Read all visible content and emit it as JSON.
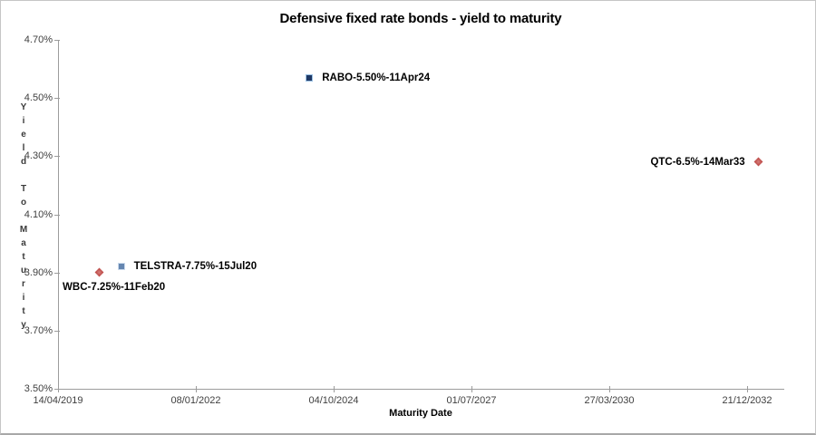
{
  "chart": {
    "title": "Defensive fixed rate bonds - yield to maturity"
  },
  "chart_data": {
    "type": "scatter",
    "title": "Defensive fixed rate bonds - yield to maturity",
    "xlabel": "Maturity Date",
    "ylabel": "Yield To Maturity",
    "x_ticks": [
      "14/04/2019",
      "08/01/2022",
      "04/10/2024",
      "01/07/2027",
      "27/03/2030",
      "21/12/2032"
    ],
    "y_ticks": [
      "4.70%",
      "4.50%",
      "4.30%",
      "4.10%",
      "3.90%",
      "3.70%",
      "3.50%"
    ],
    "xlim_dates": [
      "14/04/2019",
      "10/09/2033"
    ],
    "ylim": [
      3.5,
      4.7
    ],
    "grid": false,
    "legend": "none",
    "axis_color": "#9c9c9c",
    "points": [
      {
        "name": "wbc",
        "label": "WBC-7.25%-11Feb20",
        "maturity_date": "11/02/2020",
        "yield_pct": 3.9,
        "marker": "diamond",
        "color": "#c0504d",
        "border_color": "#b24a47",
        "label_position": "below-left"
      },
      {
        "name": "telstra",
        "label": "TELSTRA-7.75%-15Jul20",
        "maturity_date": "15/07/2020",
        "yield_pct": 3.92,
        "marker": "square",
        "color": "#6586b0",
        "border_color": "#c9d9ec",
        "label_position": "right"
      },
      {
        "name": "rabo",
        "label": "RABO-5.50%-11Apr24",
        "maturity_date": "11/04/2024",
        "yield_pct": 4.57,
        "marker": "square",
        "color": "#1f3864",
        "border_color": "#9dc3e6",
        "label_position": "right"
      },
      {
        "name": "qtc",
        "label": "QTC-6.5%-14Mar33",
        "maturity_date": "14/03/2033",
        "yield_pct": 4.28,
        "marker": "diamond",
        "color": "#c0504d",
        "border_color": "#b24a47",
        "label_position": "left"
      }
    ]
  }
}
